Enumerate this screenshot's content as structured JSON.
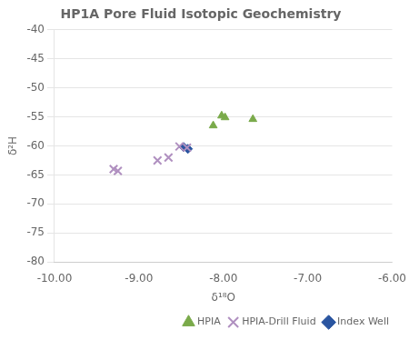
{
  "chart_data": {
    "type": "scatter",
    "title": "HP1A Pore Fluid Isotopic Geochemistry",
    "xlabel": "δ¹⁸O",
    "ylabel": "δ²H",
    "xlim": [
      -10.0,
      -6.0
    ],
    "ylim": [
      -80,
      -40
    ],
    "xticks": [
      {
        "value": -10.0,
        "label": "-10.00"
      },
      {
        "value": -9.0,
        "label": "-9.00"
      },
      {
        "value": -8.0,
        "label": "-8.00"
      },
      {
        "value": -7.0,
        "label": "-7.00"
      },
      {
        "value": -6.0,
        "label": "-6.00"
      }
    ],
    "yticks": [
      -80,
      -75,
      -70,
      -65,
      -60,
      -55,
      -50,
      -45,
      -40
    ],
    "grid": "y",
    "legend": "lower right",
    "series": [
      {
        "name": "HPIA",
        "color": "#7aaa4a",
        "marker": "triangle",
        "x": [
          -8.12,
          -8.02,
          -7.98,
          -7.65
        ],
        "values": [
          -56.5,
          -54.8,
          -55.1,
          -55.4
        ]
      },
      {
        "name": "HPIA-Drill Fluid",
        "color": "#b090c0",
        "marker": "x",
        "x": [
          -9.3,
          -9.25,
          -8.78,
          -8.65,
          -8.52,
          -8.43
        ],
        "values": [
          -64.0,
          -64.3,
          -62.5,
          -62.0,
          -60.1,
          -60.3
        ]
      },
      {
        "name": "Index Well",
        "color": "#2a55a0",
        "marker": "diamond",
        "x": [
          -8.47,
          -8.42
        ],
        "values": [
          -60.2,
          -60.5
        ]
      }
    ]
  }
}
